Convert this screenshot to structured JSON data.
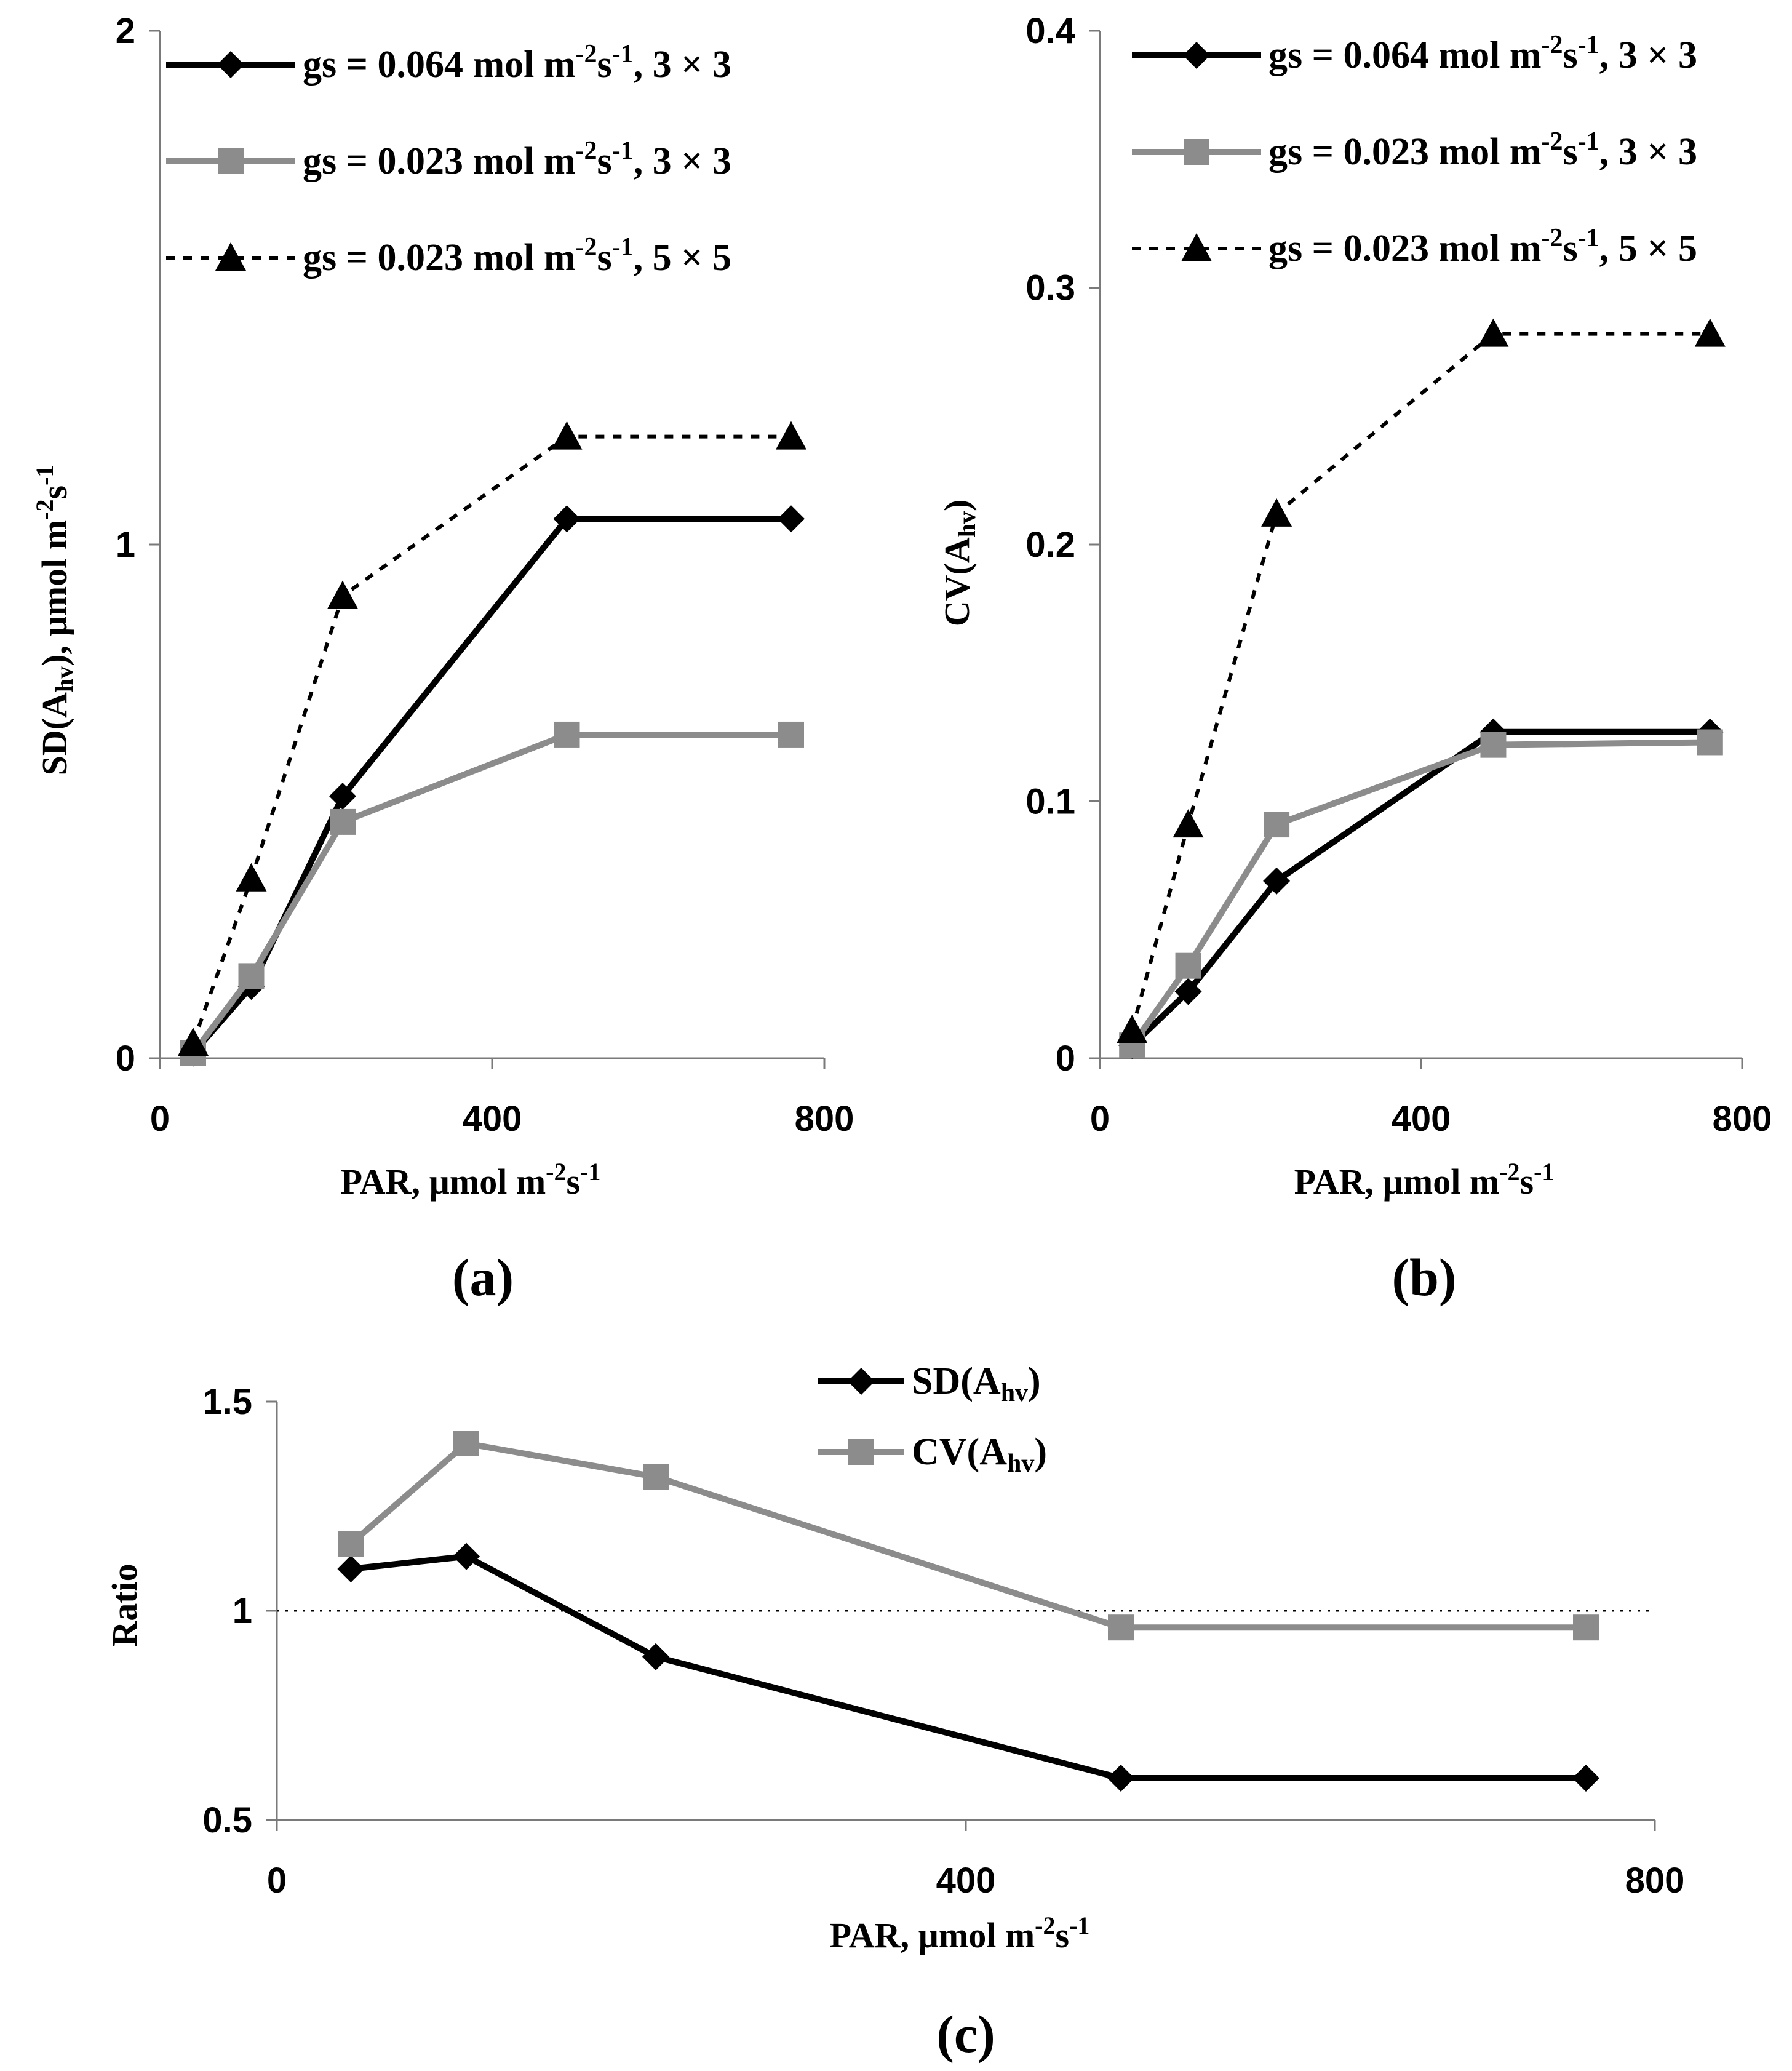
{
  "colors": {
    "black": "#000000",
    "gray": "#8c8c8c"
  },
  "chart_data": [
    {
      "panel": "(a)",
      "type": "line",
      "xlabel": "PAR, µmol m-2s-1",
      "ylabel": "SD(Ahv), µmol m-2s-1",
      "xlim": [
        0,
        800
      ],
      "ylim": [
        0,
        2
      ],
      "xticks": [
        "0",
        "400",
        "800"
      ],
      "yticks": [
        "0",
        "1",
        "2"
      ],
      "legend_position": "top-left",
      "series": [
        {
          "name": "gs = 0.064 mol m-2s-1, 3 × 3",
          "marker": "diamond",
          "style": "solid",
          "color": "#000000",
          "x": [
            40,
            110,
            220,
            490,
            760
          ],
          "y": [
            0.01,
            0.14,
            0.51,
            1.05,
            1.05
          ]
        },
        {
          "name": "gs = 0.023 mol m-2s-1, 3 × 3",
          "marker": "square",
          "style": "solid",
          "color": "#8c8c8c",
          "x": [
            40,
            110,
            220,
            490,
            760
          ],
          "y": [
            0.01,
            0.16,
            0.46,
            0.63,
            0.63
          ]
        },
        {
          "name": "gs = 0.023 mol m-2s-1, 5 × 5",
          "marker": "triangle",
          "style": "dashed",
          "color": "#000000",
          "x": [
            40,
            110,
            220,
            490,
            760
          ],
          "y": [
            0.03,
            0.35,
            0.9,
            1.21,
            1.21
          ]
        }
      ]
    },
    {
      "panel": "(b)",
      "type": "line",
      "xlabel": "PAR, µmol m-2s-1",
      "ylabel": "CV(Ahv)",
      "xlim": [
        0,
        800
      ],
      "ylim": [
        0,
        0.4
      ],
      "xticks": [
        "0",
        "400",
        "800"
      ],
      "yticks": [
        "0",
        "0.1",
        "0.2",
        "0.3",
        "0.4"
      ],
      "legend_position": "top-left",
      "series": [
        {
          "name": "gs = 0.064 mol m-2s-1, 3 × 3",
          "marker": "diamond",
          "style": "solid",
          "color": "#000000",
          "x": [
            40,
            110,
            220,
            490,
            760
          ],
          "y": [
            0.005,
            0.026,
            0.069,
            0.127,
            0.127
          ]
        },
        {
          "name": "gs = 0.023 mol m-2s-1, 3 × 3",
          "marker": "square",
          "style": "solid",
          "color": "#8c8c8c",
          "x": [
            40,
            110,
            220,
            490,
            760
          ],
          "y": [
            0.005,
            0.036,
            0.091,
            0.122,
            0.123
          ]
        },
        {
          "name": "gs = 0.023 mol m-2s-1, 5 × 5",
          "marker": "triangle",
          "style": "dashed",
          "color": "#000000",
          "x": [
            40,
            110,
            220,
            490,
            760
          ],
          "y": [
            0.011,
            0.091,
            0.212,
            0.282,
            0.282
          ]
        }
      ]
    },
    {
      "panel": "(c)",
      "type": "line",
      "xlabel": "PAR, µmol m-2s-1",
      "ylabel": "Ratio",
      "xlim": [
        0,
        800
      ],
      "ylim": [
        0.5,
        1.5
      ],
      "xticks": [
        "0",
        "400",
        "800"
      ],
      "yticks": [
        "0.5",
        "1",
        "1.5"
      ],
      "reference_line": 1,
      "legend_position": "top-center",
      "series": [
        {
          "name": "SD(Ahv)",
          "marker": "diamond",
          "style": "solid",
          "color": "#000000",
          "x": [
            43,
            110,
            220,
            490,
            760
          ],
          "y": [
            1.1,
            1.13,
            0.89,
            0.6,
            0.6
          ]
        },
        {
          "name": "CV(Ahv)",
          "marker": "square",
          "style": "solid",
          "color": "#8c8c8c",
          "x": [
            43,
            110,
            220,
            490,
            760
          ],
          "y": [
            1.16,
            1.4,
            1.32,
            0.96,
            0.96
          ]
        }
      ]
    }
  ]
}
